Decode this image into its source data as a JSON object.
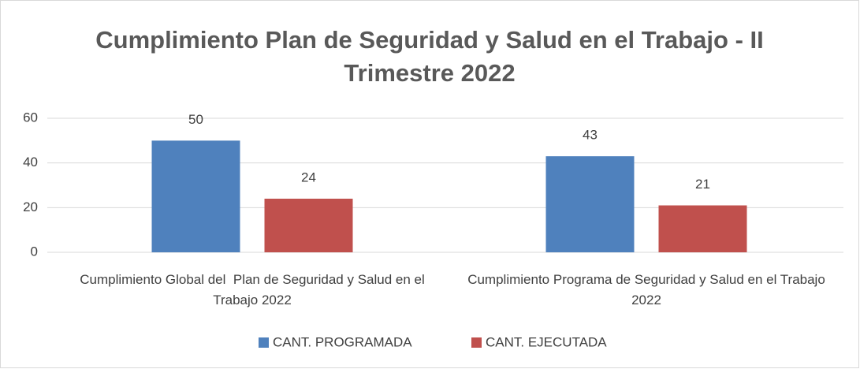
{
  "chart_data": {
    "type": "bar",
    "title": "Cumplimiento Plan de Seguridad y Salud en el Trabajo - II Trimestre 2022",
    "categories": [
      "Cumplimiento Global del  Plan de Seguridad y Salud en el Trabajo 2022",
      "Cumplimiento Programa de Seguridad y Salud en el Trabajo 2022"
    ],
    "series": [
      {
        "name": "CANT. PROGRAMADA",
        "color": "#4f81bd",
        "values": [
          50,
          43
        ]
      },
      {
        "name": "CANT. EJECUTADA",
        "color": "#c0504d",
        "values": [
          24,
          21
        ]
      }
    ],
    "ylim": [
      0,
      60
    ],
    "yticks": [
      0,
      20,
      40,
      60
    ],
    "grid": true,
    "legend": "bottom"
  }
}
